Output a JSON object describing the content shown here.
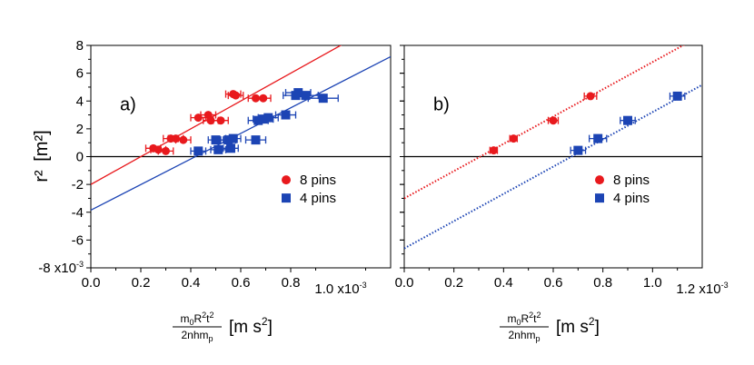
{
  "chart_data": [
    {
      "type": "scatter",
      "panel_label": "a)",
      "y_axis_label": "r²",
      "y_axis_unit": "[m²]",
      "y_scale_label": "-8 x10",
      "y_scale_exp": "-3",
      "x_scale_label": "1.0 x10",
      "x_scale_exp": "-3",
      "xlim": [
        0.0,
        1.2
      ],
      "ylim": [
        -8,
        8
      ],
      "x_ticks": [
        "0.0",
        "0.2",
        "0.4",
        "0.6",
        "0.8"
      ],
      "y_ticks": [
        "8",
        "6",
        "4",
        "2",
        "0",
        "-2",
        "-4",
        "-6"
      ],
      "legend": [
        "8 pins",
        "4 pins"
      ],
      "series": [
        {
          "name": "8 pins",
          "color": "#e8191d",
          "marker": "circle",
          "points": [
            [
              0.25,
              0.6
            ],
            [
              0.27,
              0.5
            ],
            [
              0.3,
              0.4
            ],
            [
              0.32,
              1.3
            ],
            [
              0.34,
              1.3
            ],
            [
              0.37,
              1.2
            ],
            [
              0.43,
              2.8
            ],
            [
              0.47,
              3.0
            ],
            [
              0.48,
              2.6
            ],
            [
              0.52,
              2.6
            ],
            [
              0.57,
              4.5
            ],
            [
              0.58,
              4.4
            ],
            [
              0.66,
              4.2
            ],
            [
              0.69,
              4.2
            ]
          ],
          "xerr": [
            0.03,
            0.03,
            0.03,
            0.03,
            0.03,
            0.03,
            0.03,
            0.03,
            0.03,
            0.03,
            0.03,
            0.03,
            0.03,
            0.03
          ],
          "fit": {
            "slope": 10.0,
            "intercept": -2.0,
            "style": "solid"
          }
        },
        {
          "name": "4 pins",
          "color": "#1c44b4",
          "marker": "square",
          "points": [
            [
              0.43,
              0.4
            ],
            [
              0.5,
              1.2
            ],
            [
              0.51,
              0.5
            ],
            [
              0.55,
              1.2
            ],
            [
              0.56,
              0.6
            ],
            [
              0.57,
              1.3
            ],
            [
              0.66,
              1.2
            ],
            [
              0.67,
              2.6
            ],
            [
              0.69,
              2.7
            ],
            [
              0.71,
              2.8
            ],
            [
              0.78,
              3.0
            ],
            [
              0.82,
              4.4
            ],
            [
              0.83,
              4.6
            ],
            [
              0.86,
              4.4
            ],
            [
              0.93,
              4.2
            ]
          ],
          "xerr": [
            0.03,
            0.03,
            0.03,
            0.03,
            0.03,
            0.03,
            0.04,
            0.04,
            0.04,
            0.04,
            0.04,
            0.05,
            0.05,
            0.05,
            0.06
          ],
          "fit": {
            "slope": 9.2,
            "intercept": -3.85,
            "style": "solid"
          }
        }
      ]
    },
    {
      "type": "scatter",
      "panel_label": "b)",
      "x_scale_label": "1.2 x10",
      "x_scale_exp": "-3",
      "xlim": [
        0.0,
        1.2
      ],
      "ylim": [
        -8,
        8
      ],
      "x_ticks": [
        "0.0",
        "0.2",
        "0.4",
        "0.6",
        "0.8",
        "1.0"
      ],
      "legend": [
        "8 pins",
        "4 pins"
      ],
      "series": [
        {
          "name": "8 pins",
          "color": "#e8191d",
          "marker": "circle",
          "points": [
            [
              0.36,
              0.45
            ],
            [
              0.44,
              1.3
            ],
            [
              0.6,
              2.6
            ],
            [
              0.75,
              4.35
            ]
          ],
          "xerr": [
            0.015,
            0.015,
            0.02,
            0.025
          ],
          "fit": {
            "slope": 9.8,
            "intercept": -3.0,
            "style": "dotted"
          }
        },
        {
          "name": "4 pins",
          "color": "#1c44b4",
          "marker": "square",
          "points": [
            [
              0.7,
              0.45
            ],
            [
              0.78,
              1.3
            ],
            [
              0.9,
              2.6
            ],
            [
              1.1,
              4.35
            ]
          ],
          "xerr": [
            0.03,
            0.035,
            0.03,
            0.03
          ],
          "fit": {
            "slope": 9.8,
            "intercept": -6.6,
            "style": "dotted"
          }
        }
      ]
    }
  ],
  "x_axis_label": {
    "numerator_m": "m",
    "numerator_m_sub": "0",
    "numerator_R": "R",
    "numerator_R_sup": "2",
    "numerator_t": "t",
    "numerator_t_sup": "2",
    "denominator": "2nhm",
    "denominator_sub": "p",
    "unit_open": "[m s",
    "unit_sup": "2",
    "unit_close": "]"
  }
}
